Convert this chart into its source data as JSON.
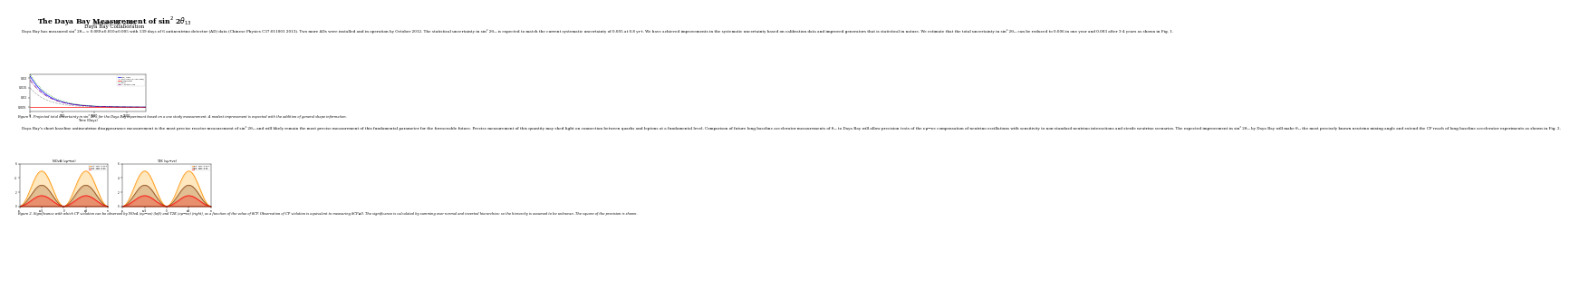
{
  "title": "The Daya Bay Measurement of sin$^2$ 2$\\theta_{13}$",
  "date": "January 31, 2013",
  "collaboration": "Daya Bay Collaboration",
  "body1": "    Daya Bay has measured sin² 2θ₁₃ = 0.089±0.010±0.005 with 139 days of 6 antineutrino detector (AD) data (Chinese Physics C37:011001 2013). Two more ADs were installed and in operation by October 2012. The statistical uncertainty in sin² 2θ₁₃ is expected to match the current systematic uncertainty of 0.005 at 0.8 yr·t. We have achieved improvements in the systematic uncertainty based on calibration data and improved generators that is statistical in nature. We estimate that the total uncertainty in sin² 2θ₁₃ can be reduced to 0.006 in one year and 0.003 after 3-4 years as shown in Fig. 1.",
  "fig1_caption": "Figure 1. Projected total uncertainty in sin² 2θ₁₃ for the Daya Bay experiment based on a one study measurement. A modest improvement is expected with the addition of general shape information.",
  "body2": "    Daya Bay's short baseline antineutrino disappearance measurement is the most precise reactor measurement of sin² 2θ₁₃ and will likely remain the most precise measurement of this fundamental parameter for the foreseeable future. Precise measurement of this quantity may shed light on connection between quarks and leptons at a fundamental level. Comparison of future long baseline accelerator measurements of θ₁₃ to Daya Bay will allow precision tests of the νμ→νe compensation of neutrino oscillations with sensitivity to non-standard neutrino interactions and sterile neutrino scenarios. The expected improvement in sin² 2θ₁₃ by Daya Bay will make θ₁₃ the most precisely known neutrino mixing angle and extend the CP reach of long baseline accelerator experiments as shown in Fig. 2.",
  "fig2_caption": "Figure 2. Significance with which CP violation can be observed by NOvA (νμ→νe) (left) and T2K (νμ→νe) (right), as a function of the value of δCP. Observation of CP violation is equivalent to measuring δCP≠0. The significance is calculated by summing over normal and inverted hierarchies; so the hierarchy is assumed to be unknown. The square of the precision is shown.",
  "title_fontsize": 5.5,
  "date_fontsize": 4.0,
  "body_fontsize": 3.0,
  "caption_fontsize": 2.6,
  "fig1_yticks": [
    0.005,
    0.01,
    0.015,
    0.02
  ],
  "fig1_ytick_labels": [
    "0.005",
    "0.01",
    "0.015",
    "0.02"
  ],
  "fig1_xticks": [
    0,
    500,
    1000,
    1500
  ],
  "fig1_xtick_labels": [
    "0",
    "500",
    "1000",
    "1500"
  ],
  "fig1_xlabel": "Time (Days)",
  "fig1_xlim": [
    0,
    1800
  ],
  "fig1_ylim": [
    0.003,
    0.022
  ],
  "nova_title": "NOvA (νμ→νe)",
  "t2k_title": "T2K (νμ→νe)",
  "line_colors": [
    "blue",
    "darkgray",
    "red",
    "green",
    "purple"
  ],
  "line_styles": [
    "-",
    "--",
    "-",
    ":",
    "-."
  ],
  "line_labels": [
    "sin² 2θ₁₃",
    "stat only (6 AD+stat)",
    "systematic",
    "total",
    "+ shape info"
  ],
  "osc_colors": [
    "darkorange",
    "saddlebrown",
    "red",
    "darkred"
  ],
  "osc_labels1": [
    "sin² 2θ₁₃=0.089",
    "sin² 2θ₁₃=0.05",
    "sin² 2θ₁₃=0.03"
  ],
  "osc_labels2": [
    "sin² 2θ₁₃=0.089",
    "sin² 2θ₁₃=0.05",
    "sin² 2θ₁₃=0.03"
  ]
}
